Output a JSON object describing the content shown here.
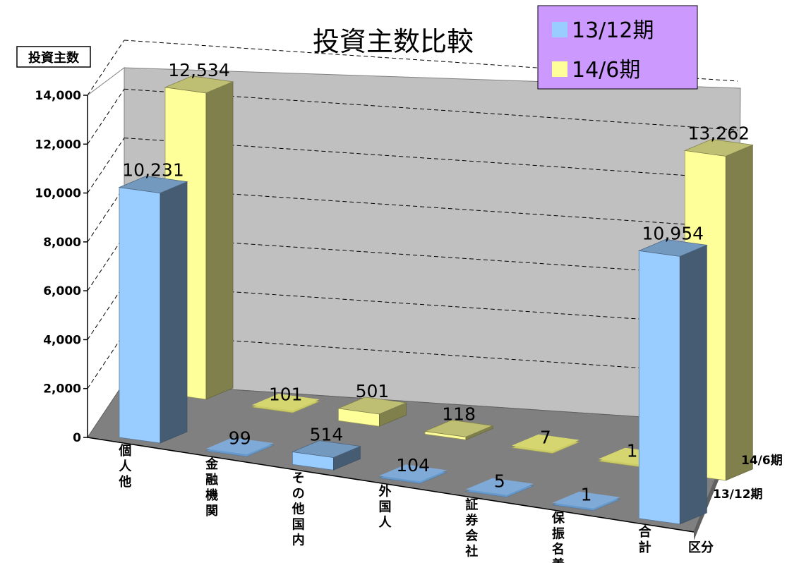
{
  "chart_data": {
    "type": "bar",
    "title": "投資主数比較",
    "ylabel": "投資主数",
    "xlabel": "区分",
    "ylim": [
      0,
      14000
    ],
    "yticks": [
      "0",
      "2,000",
      "4,000",
      "6,000",
      "8,000",
      "10,000",
      "12,000",
      "14,000"
    ],
    "categories": [
      "個人他",
      "金融機関",
      "その他国内",
      "外国人",
      "証券会社",
      "保振名義",
      "合計"
    ],
    "series": [
      {
        "name": "13/12期",
        "color": "#99ccff",
        "values": [
          10231,
          99,
          514,
          104,
          5,
          1,
          10954
        ],
        "labels": [
          "10,231",
          "99",
          "514",
          "104",
          "5",
          "1",
          "10,954"
        ]
      },
      {
        "name": "14/6期",
        "color": "#ffff99",
        "values": [
          12534,
          101,
          501,
          118,
          7,
          1,
          13262
        ],
        "labels": [
          "12,534",
          "101",
          "501",
          "118",
          "7",
          "1",
          "13,262"
        ]
      }
    ],
    "depth_labels": [
      "14/6期",
      "13/12期"
    ],
    "legend_position": "top-right",
    "legend_background": "#cc99ff",
    "wall_color": "#c0c0c0",
    "floor_color": "#808080",
    "grid": true
  }
}
